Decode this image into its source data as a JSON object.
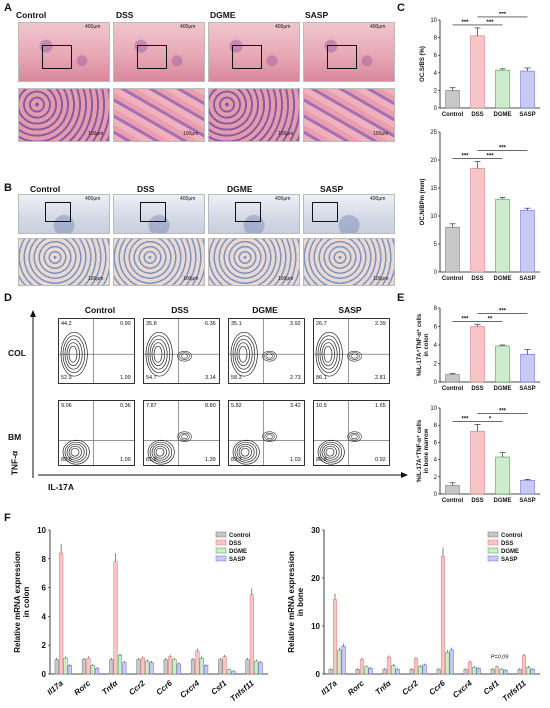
{
  "panels": {
    "A": "A",
    "B": "B",
    "C": "C",
    "D": "D",
    "E": "E",
    "F": "F"
  },
  "groups": [
    "Control",
    "DSS",
    "DGME",
    "SASP"
  ],
  "scale": {
    "low": "400μm",
    "high": "100μm"
  },
  "flow": {
    "row_labels": [
      "COL",
      "BM"
    ],
    "y_axis": "TNF-α",
    "x_axis": "IL-17A",
    "col": [
      {
        "q": [
          "44.2",
          "0.90",
          "52.9",
          "1.99"
        ]
      },
      {
        "q": [
          "35.8",
          "6.36",
          "54.7",
          "3.14"
        ]
      },
      {
        "q": [
          "35.1",
          "3.92",
          "58.3",
          "2.73"
        ]
      },
      {
        "q": [
          "26.7",
          "2.39",
          "86.1",
          "2.81"
        ]
      }
    ],
    "bm": [
      {
        "q": [
          "9.06",
          "0.36",
          "89.5",
          "1.09"
        ]
      },
      {
        "q": [
          "7.87",
          "8.80",
          "81.9",
          "1.39"
        ]
      },
      {
        "q": [
          "5.82",
          "3.42",
          "89.7",
          "1.03"
        ]
      },
      {
        "q": [
          "10.5",
          "1.65",
          "86.9",
          "0.92"
        ]
      }
    ]
  },
  "colors": {
    "Control": "#c8c8c8",
    "DSS": "#f6c6c6",
    "DGME": "#cdeccd",
    "SASP": "#c9c9f5"
  },
  "colors_edge": {
    "Control": "#777",
    "DSS": "#d97a7a",
    "DGME": "#4b9b4b",
    "SASP": "#6a6ad6"
  },
  "chart_data": [
    {
      "id": "C1",
      "type": "bar",
      "categories": [
        "Control",
        "DSS",
        "DGME",
        "SASP"
      ],
      "values": [
        2.0,
        8.2,
        4.3,
        4.2
      ],
      "errors": [
        0.3,
        0.9,
        0.15,
        0.35
      ],
      "ylabel": "OC.S/BS (%)",
      "ylim": [
        0,
        10
      ],
      "yticks": [
        0,
        2,
        4,
        6,
        8,
        10
      ],
      "sig": [
        "***",
        "***",
        "***"
      ]
    },
    {
      "id": "C2",
      "type": "bar",
      "categories": [
        "Control",
        "DSS",
        "DGME",
        "SASP"
      ],
      "values": [
        8,
        18.5,
        13,
        11
      ],
      "errors": [
        0.6,
        1.2,
        0.3,
        0.4
      ],
      "ylabel": "OC.N/BPm (mm)",
      "ylim": [
        0,
        25
      ],
      "yticks": [
        0,
        5,
        10,
        15,
        20,
        25
      ],
      "sig": [
        "***",
        "***",
        "***"
      ]
    },
    {
      "id": "E1",
      "type": "bar",
      "categories": [
        "Control",
        "DSS",
        "DGME",
        "SASP"
      ],
      "values": [
        0.8,
        6.0,
        3.9,
        3.0
      ],
      "errors": [
        0.1,
        0.2,
        0.1,
        0.5
      ],
      "ylabel": "%IL-17A⁺TNF-α⁺ cells in colon",
      "ylim": [
        0,
        8
      ],
      "yticks": [
        0,
        2,
        4,
        6,
        8
      ],
      "sig": [
        "***",
        "**",
        "***"
      ]
    },
    {
      "id": "E2",
      "type": "bar",
      "categories": [
        "Control",
        "DSS",
        "DGME",
        "SASP"
      ],
      "values": [
        1.0,
        7.3,
        4.3,
        1.6
      ],
      "errors": [
        0.3,
        0.8,
        0.5,
        0.1
      ],
      "ylabel": "%IL-17A⁺TNF-α⁺ cells in bone marrow",
      "ylim": [
        0,
        10
      ],
      "yticks": [
        0,
        2,
        4,
        6,
        8,
        10
      ],
      "sig": [
        "***",
        "*",
        "***"
      ]
    },
    {
      "id": "F1",
      "type": "bar",
      "ylabel": "Relative mRNA expression in colon",
      "ylim": [
        0,
        10
      ],
      "yticks": [
        0,
        2,
        4,
        6,
        8,
        10
      ],
      "categories": [
        "Il17a",
        "Rorc",
        "Tnfα",
        "Ccr2",
        "Ccr6",
        "Cxcr4",
        "Csf1",
        "Tnfsf11"
      ],
      "series": [
        {
          "name": "Control",
          "values": [
            1,
            1,
            1,
            1,
            1,
            1,
            1,
            1
          ]
        },
        {
          "name": "DSS",
          "values": [
            8.4,
            1.1,
            7.8,
            1.1,
            1.2,
            1.6,
            1.2,
            5.5
          ]
        },
        {
          "name": "DGME",
          "values": [
            1.1,
            0.6,
            1.3,
            0.9,
            1.0,
            1.1,
            0.3,
            0.9
          ]
        },
        {
          "name": "SASP",
          "values": [
            0.6,
            0.4,
            0.8,
            0.8,
            0.7,
            0.6,
            0.2,
            0.8
          ]
        }
      ]
    },
    {
      "id": "F2",
      "type": "bar",
      "ylabel": "Relative mRNA expression in bone",
      "ylim": [
        0,
        30
      ],
      "yticks": [
        0,
        10,
        20,
        30
      ],
      "categories": [
        "Il17a",
        "Rorc",
        "Tnfα",
        "Ccr2",
        "Ccr6",
        "Cxcr4",
        "Csf1",
        "Tnfsf11"
      ],
      "annotation": "P=0.09",
      "series": [
        {
          "name": "Control",
          "values": [
            1,
            1,
            1,
            1,
            1,
            1,
            1,
            1
          ]
        },
        {
          "name": "DSS",
          "values": [
            15.5,
            3.0,
            3.5,
            3.2,
            24.5,
            2.5,
            1.5,
            3.8
          ]
        },
        {
          "name": "DGME",
          "values": [
            5.0,
            1.5,
            1.8,
            1.6,
            4.5,
            1.4,
            1.0,
            1.4
          ]
        },
        {
          "name": "SASP",
          "values": [
            5.8,
            1.2,
            1.0,
            1.9,
            5.0,
            1.2,
            0.8,
            1.0
          ]
        }
      ]
    }
  ]
}
